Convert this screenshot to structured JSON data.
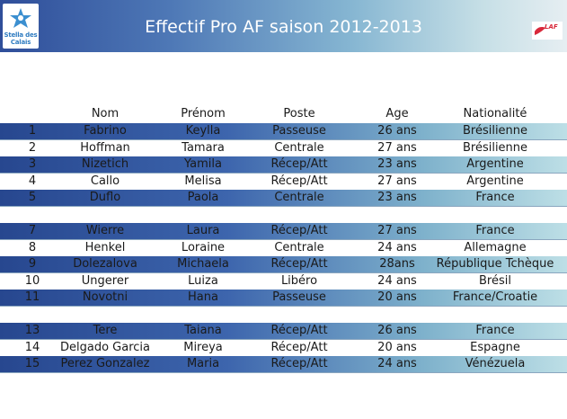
{
  "header": {
    "title": "Effectif Pro AF saison 2012-2013",
    "logo_left_line1": "Stella des",
    "logo_left_line2": "Calais",
    "logo_right_text": "LAF"
  },
  "table": {
    "columns": [
      "",
      "Nom",
      "Prénom",
      "Poste",
      "Age",
      "Nationalité"
    ],
    "groups": [
      [
        [
          "1",
          "Fabrino",
          "Keylla",
          "Passeuse",
          "26 ans",
          "Brésilienne"
        ],
        [
          "2",
          "Hoffman",
          "Tamara",
          "Centrale",
          "27 ans",
          "Brésilienne"
        ],
        [
          "3",
          "Nizetich",
          "Yamila",
          "Récep/Att",
          "23 ans",
          "Argentine"
        ],
        [
          "4",
          "Callo",
          "Melisa",
          "Récep/Att",
          "27 ans",
          "Argentine"
        ],
        [
          "5",
          "Duflo",
          "Paola",
          "Centrale",
          "23 ans",
          "France"
        ]
      ],
      [
        [
          "7",
          "Wierre",
          "Laura",
          "Récep/Att",
          "27 ans",
          "France"
        ],
        [
          "8",
          "Henkel",
          "Loraine",
          "Centrale",
          "24 ans",
          "Allemagne"
        ],
        [
          "9",
          "Dolezalova",
          "Michaela",
          "Récep/Att",
          "28ans",
          "République Tchèque"
        ],
        [
          "10",
          "Ungerer",
          "Luiza",
          "Libéro",
          "24 ans",
          "Brésil"
        ],
        [
          "11",
          "Novotni",
          "Hana",
          "Passeuse",
          "20 ans",
          "France/Croatie"
        ]
      ],
      [
        [
          "13",
          "Tere",
          "Taiana",
          "Récep/Att",
          "26 ans",
          "France"
        ],
        [
          "14",
          "Delgado Garcia",
          "Mireya",
          "Récep/Att",
          "20 ans",
          "Espagne"
        ],
        [
          "15",
          "Perez Gonzalez",
          "Maria",
          "Récep/Att",
          "24 ans",
          "Vénézuela"
        ]
      ]
    ]
  }
}
